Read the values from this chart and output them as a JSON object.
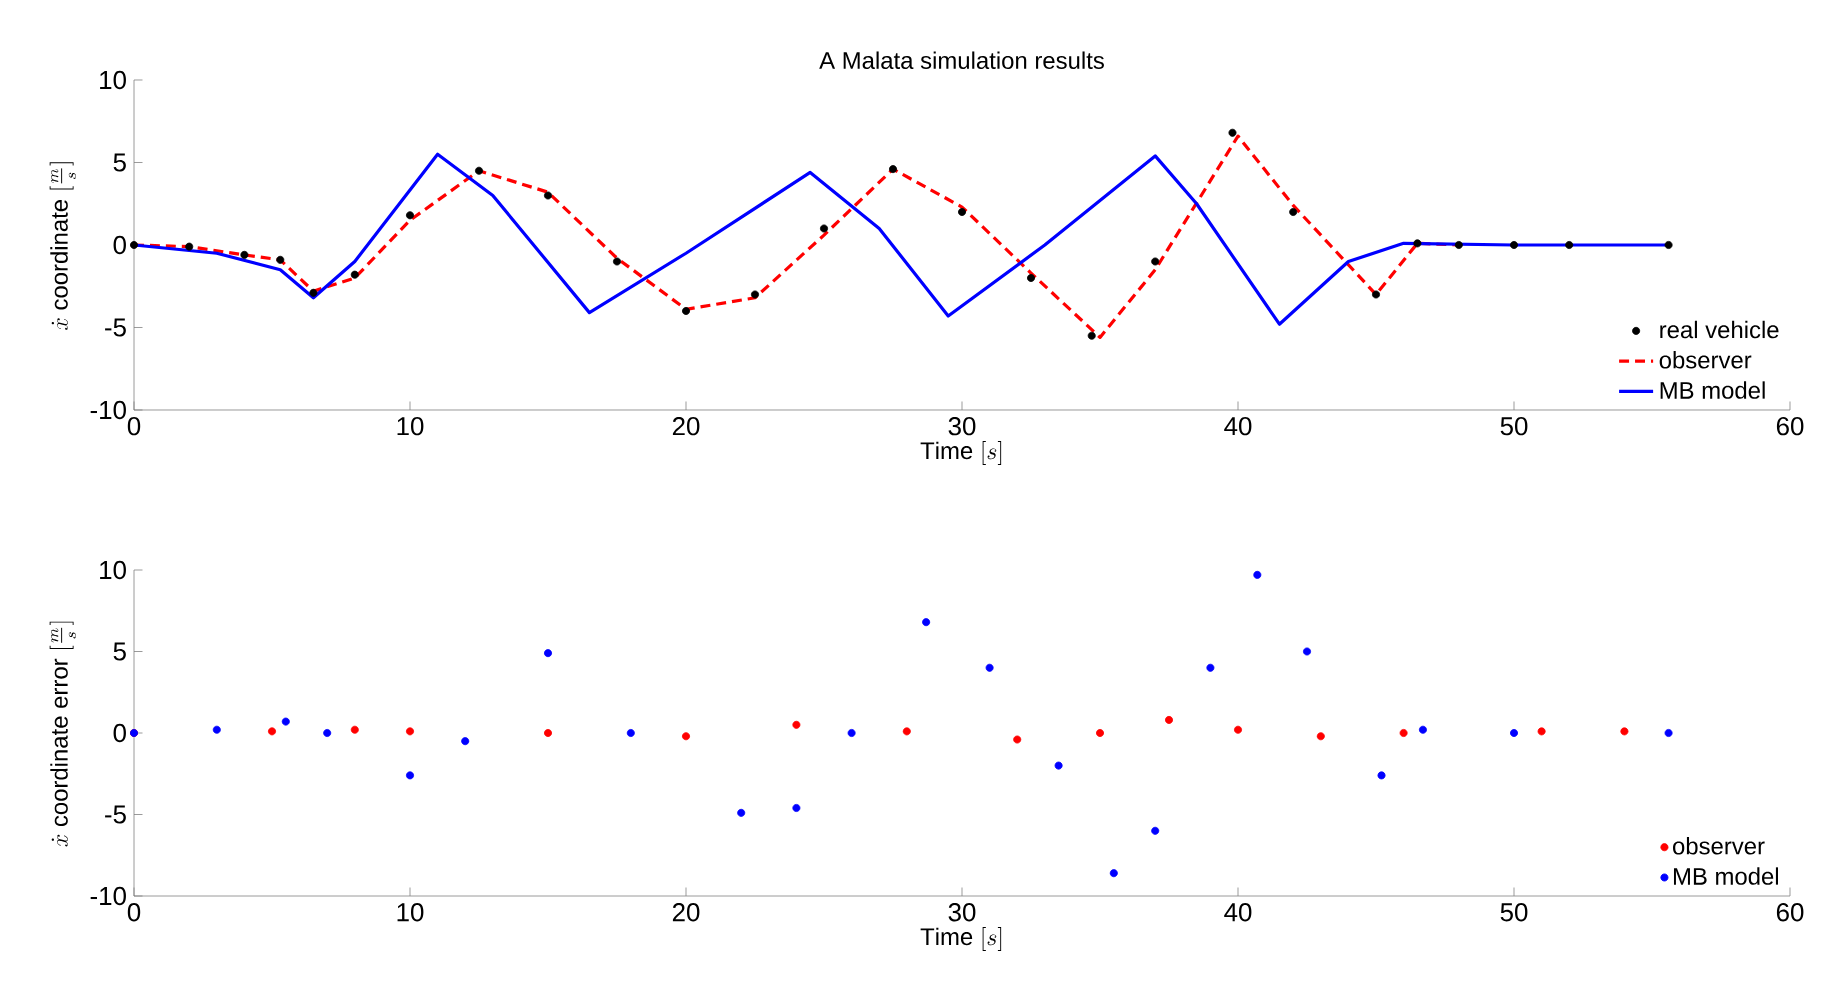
{
  "chart_data": [
    {
      "type": "line",
      "title": "A Malata simulation results",
      "xlabel": "\\mathrm{Time}\\ [s]",
      "ylabel": "\\dot{x}\\ \\mathrm{coordinate}\\ [\\frac{m}{s}]",
      "xlim": [
        0,
        60
      ],
      "ylim": [
        -10,
        10
      ],
      "xticks": [
        0,
        10,
        20,
        30,
        40,
        50,
        60
      ],
      "yticks": [
        -10,
        -5,
        0,
        5,
        10
      ],
      "legend": "bottom right",
      "series": [
        {
          "name": "real vehicle",
          "type": "scatter",
          "color": "#000000",
          "x": [
            0,
            2,
            4,
            5.3,
            6.5,
            8,
            10,
            12.5,
            15,
            17.5,
            20,
            22.5,
            25,
            27.5,
            30,
            32.5,
            34.7,
            37,
            39.8,
            42,
            45,
            46.5,
            48,
            50,
            52,
            55.6
          ],
          "values": [
            0,
            -0.1,
            -0.6,
            -0.9,
            -2.9,
            -1.8,
            1.8,
            4.5,
            3,
            -1,
            -4,
            -3,
            1,
            4.6,
            2,
            -2,
            -5.5,
            -1,
            6.8,
            2,
            -3,
            0.1,
            0,
            0,
            0,
            0
          ]
        },
        {
          "name": "observer",
          "type": "line",
          "line_style": "dashed",
          "color": "#ff0000",
          "x": [
            0,
            2,
            4,
            5.3,
            6.5,
            8,
            10,
            12.5,
            15,
            17.5,
            20,
            22.5,
            25,
            27.5,
            30,
            32.5,
            35,
            37,
            40,
            42,
            45,
            46.5,
            48
          ],
          "values": [
            0,
            -0.1,
            -0.6,
            -0.9,
            -2.8,
            -2,
            1.5,
            4.5,
            3.2,
            -0.8,
            -3.9,
            -3.2,
            0.6,
            4.6,
            2.3,
            -1.7,
            -5.6,
            -1.5,
            6.6,
            2.4,
            -3,
            0.1,
            0
          ]
        },
        {
          "name": "MB model",
          "type": "line",
          "line_style": "solid",
          "color": "#0000ff",
          "x": [
            0,
            3,
            5.3,
            6.5,
            8,
            11,
            13,
            16.5,
            20,
            24.5,
            27,
            29.5,
            33,
            37,
            38.5,
            41.5,
            44,
            46,
            50,
            55.6
          ],
          "values": [
            0,
            -0.5,
            -1.5,
            -3.2,
            -1,
            5.5,
            3,
            -4.1,
            -0.5,
            4.4,
            1,
            -4.3,
            0,
            5.4,
            2.5,
            -4.8,
            -1,
            0.1,
            0,
            0
          ]
        }
      ]
    },
    {
      "type": "scatter",
      "xlabel": "\\mathrm{Time}\\ [s]",
      "ylabel": "\\dot{x}\\ \\mathrm{coordinate\\ error}\\ [\\frac{m}{s}]",
      "xlim": [
        0,
        60
      ],
      "ylim": [
        -10,
        10
      ],
      "xticks": [
        0,
        10,
        20,
        30,
        40,
        50,
        60
      ],
      "yticks": [
        -10,
        -5,
        0,
        5,
        10
      ],
      "legend": "bottom right",
      "series": [
        {
          "name": "observer",
          "color": "#ff0000",
          "x": [
            0,
            5,
            8,
            10,
            15,
            20,
            24,
            28,
            32,
            35,
            37.5,
            40,
            43,
            46,
            51,
            54
          ],
          "values": [
            0,
            0.1,
            0.2,
            0.1,
            0,
            -0.2,
            0.5,
            0.1,
            -0.4,
            0,
            0.8,
            0.2,
            -0.2,
            0,
            0.1,
            0.1
          ]
        },
        {
          "name": "MB model",
          "color": "#0000ff",
          "x": [
            0,
            3,
            5.5,
            7,
            10,
            12,
            15,
            18,
            22,
            24,
            26,
            28.7,
            31,
            33.5,
            35.5,
            37,
            39,
            40.7,
            42.5,
            45.2,
            46.7,
            50,
            55.6
          ],
          "values": [
            0,
            0.2,
            0.7,
            0,
            -2.6,
            -0.5,
            4.9,
            0,
            -4.9,
            -4.6,
            0,
            6.8,
            4,
            -2,
            -8.6,
            -6,
            4,
            9.7,
            5,
            -2.6,
            0.2,
            0,
            0
          ]
        }
      ]
    }
  ]
}
